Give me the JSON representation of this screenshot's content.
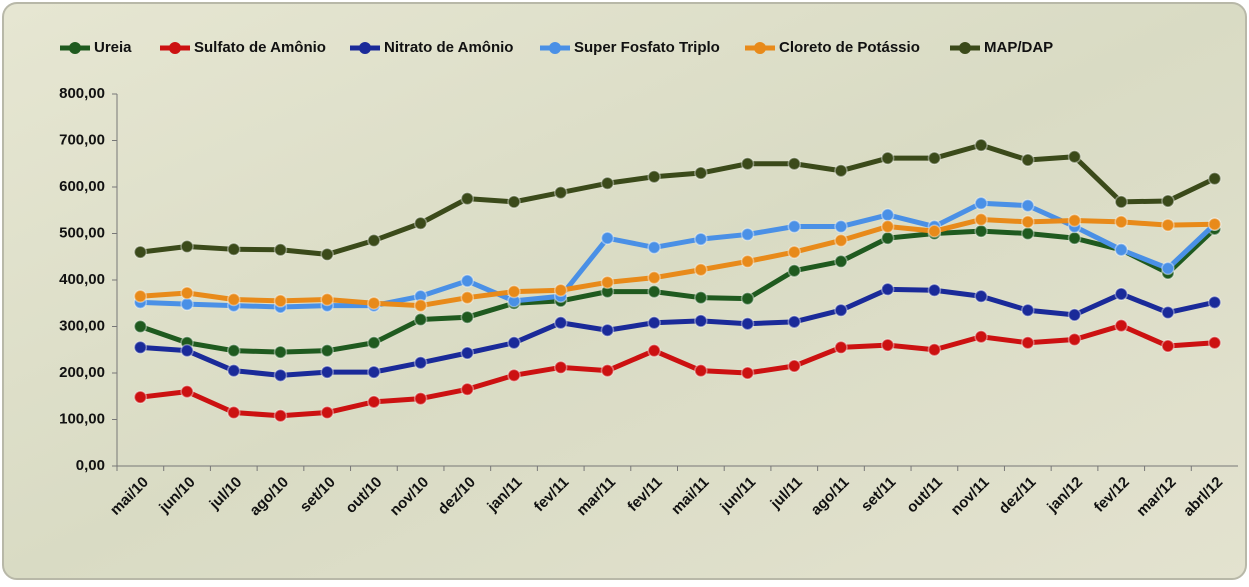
{
  "chart_data": {
    "type": "line",
    "categories": [
      "mai/10",
      "jun/10",
      "jul/10",
      "ago/10",
      "set/10",
      "out/10",
      "nov/10",
      "dez/10",
      "jan/11",
      "fev/11",
      "mar/11",
      "fev/11",
      "mai/11",
      "jun/11",
      "jul/11",
      "ago/11",
      "set/11",
      "out/11",
      "nov/11",
      "dez/11",
      "jan/12",
      "fev/12",
      "mar/12",
      "abrl/12"
    ],
    "series": [
      {
        "name": "Ureia",
        "color": "#1f5a1f",
        "values": [
          300,
          265,
          248,
          245,
          248,
          265,
          315,
          320,
          350,
          355,
          375,
          375,
          362,
          360,
          420,
          440,
          490,
          500,
          505,
          500,
          490,
          465,
          415,
          510
        ]
      },
      {
        "name": "Sulfato de Amônio",
        "color": "#cc1111",
        "values": [
          148,
          160,
          115,
          108,
          115,
          138,
          145,
          165,
          195,
          212,
          205,
          248,
          205,
          200,
          215,
          255,
          260,
          250,
          278,
          265,
          272,
          302,
          258,
          265
        ]
      },
      {
        "name": "Nitrato de Amônio",
        "color": "#1a2a99",
        "values": [
          255,
          248,
          205,
          195,
          202,
          202,
          222,
          243,
          265,
          308,
          292,
          308,
          312,
          306,
          310,
          335,
          380,
          378,
          365,
          335,
          325,
          370,
          330,
          352
        ]
      },
      {
        "name": "Super Fosfato Triplo",
        "color": "#4a90e6",
        "values": [
          352,
          348,
          345,
          342,
          345,
          345,
          365,
          398,
          355,
          365,
          490,
          470,
          488,
          498,
          515,
          515,
          540,
          515,
          565,
          560,
          515,
          465,
          425,
          520
        ]
      },
      {
        "name": "Cloreto de Potássio",
        "color": "#e88a1a",
        "values": [
          365,
          372,
          358,
          355,
          358,
          350,
          345,
          362,
          375,
          378,
          395,
          405,
          422,
          440,
          460,
          485,
          515,
          505,
          530,
          525,
          528,
          525,
          518,
          520
        ]
      },
      {
        "name": "MAP/DAP",
        "color": "#3b4a1a",
        "values": [
          460,
          472,
          466,
          465,
          455,
          485,
          522,
          575,
          568,
          588,
          608,
          622,
          630,
          650,
          650,
          635,
          662,
          662,
          690,
          658,
          665,
          568,
          570,
          618
        ]
      }
    ],
    "ylim": [
      0,
      800
    ],
    "yticks": [
      {
        "value": 0,
        "label": "0,00"
      },
      {
        "value": 100,
        "label": "100,00"
      },
      {
        "value": 200,
        "label": "200,00"
      },
      {
        "value": 300,
        "label": "300,00"
      },
      {
        "value": 400,
        "label": "400,00"
      },
      {
        "value": 500,
        "label": "500,00"
      },
      {
        "value": 600,
        "label": "600,00"
      },
      {
        "value": 700,
        "label": "700,00"
      },
      {
        "value": 800,
        "label": "800,00"
      }
    ],
    "legend": "top"
  }
}
